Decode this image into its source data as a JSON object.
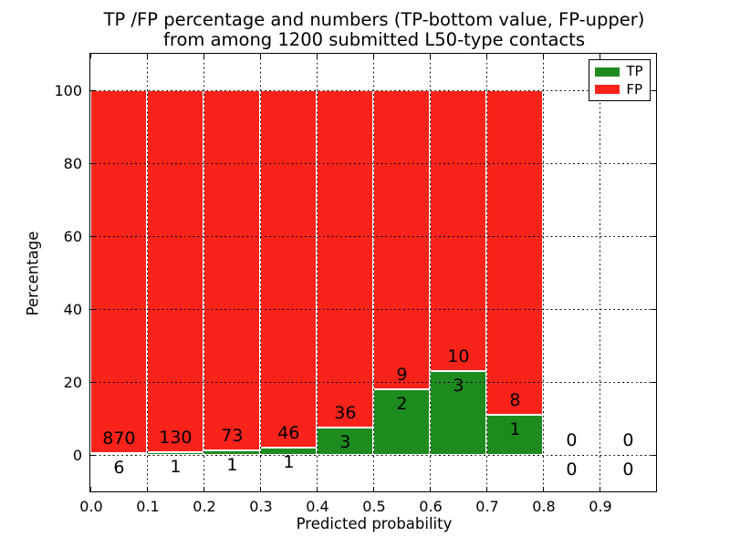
{
  "title": {
    "line1": "TP /FP percentage and numbers (TP-bottom value, FP-upper)",
    "line2": "from among 1200 submitted L50-type contacts"
  },
  "chart_data": {
    "type": "bar",
    "stacked": true,
    "normalization": "each bin scaled so TP%+FP%=100",
    "title": "TP /FP percentage and numbers (TP-bottom value, FP-upper) from among 1200 submitted L50-type contacts",
    "xlabel": "Predicted probability",
    "ylabel": "Percentage",
    "xlim": [
      0.0,
      1.0
    ],
    "ylim": [
      -10,
      110
    ],
    "xticks": [
      "0.0",
      "0.1",
      "0.2",
      "0.3",
      "0.4",
      "0.5",
      "0.6",
      "0.7",
      "0.8",
      "0.9"
    ],
    "yticks": [
      "0",
      "20",
      "40",
      "60",
      "80",
      "100"
    ],
    "grid": "dotted black",
    "legend_position": "upper right",
    "bin_edges": [
      0.0,
      0.1,
      0.2,
      0.3,
      0.4,
      0.5,
      0.6,
      0.7,
      0.8,
      0.9,
      1.0
    ],
    "series": [
      {
        "name": "TP",
        "color": "#1e8b1e",
        "counts": [
          6,
          1,
          1,
          1,
          3,
          2,
          3,
          1,
          0,
          0
        ]
      },
      {
        "name": "FP",
        "color": "#fa231a",
        "counts": [
          870,
          130,
          73,
          46,
          36,
          9,
          10,
          8,
          0,
          0
        ]
      }
    ],
    "tp_percent": [
      0.68,
      0.76,
      1.35,
      2.13,
      7.69,
      18.18,
      23.08,
      11.11,
      0,
      0
    ],
    "total_contacts": 1200
  },
  "colors": {
    "tp_green": "#1e8b1e",
    "fp_red": "#fa231a",
    "axes": "#000000",
    "background": "#ffffff"
  }
}
